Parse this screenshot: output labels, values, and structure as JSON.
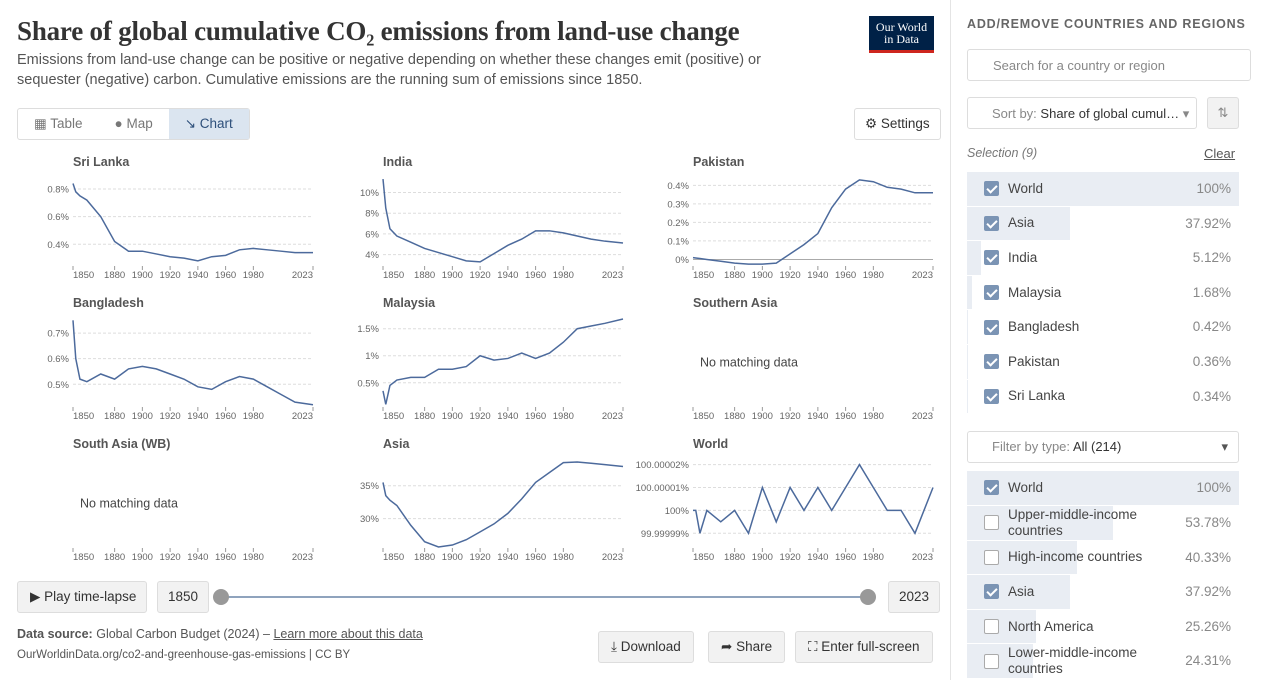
{
  "logo": {
    "line1": "Our World",
    "line2": "in Data"
  },
  "header": {
    "title": "Share of global cumulative CO₂ emissions from land-use change",
    "subtitle": "Emissions from land-use change can be positive or negative depending on whether these changes emit (positive) or sequester (negative) carbon. Cumulative emissions are the running sum of emissions since 1850."
  },
  "tabs": [
    "Table",
    "Map",
    "Chart"
  ],
  "settings": "Settings",
  "chart_data": [
    {
      "type": "line",
      "title": "Sri Lanka",
      "color": "#4c6a9c",
      "x": [
        1850,
        1852,
        1855,
        1860,
        1870,
        1880,
        1890,
        1900,
        1910,
        1920,
        1930,
        1940,
        1950,
        1960,
        1970,
        1980,
        1990,
        2000,
        2010,
        2023
      ],
      "values": [
        0.84,
        0.78,
        0.75,
        0.72,
        0.6,
        0.42,
        0.35,
        0.35,
        0.33,
        0.31,
        0.3,
        0.28,
        0.31,
        0.32,
        0.36,
        0.37,
        0.36,
        0.35,
        0.34,
        0.34
      ],
      "xlim": [
        1850,
        2023
      ],
      "xticks": [
        1850,
        1880,
        1900,
        1920,
        1940,
        1960,
        1980,
        2023
      ],
      "ylim": [
        0.25,
        0.88
      ],
      "yticks": [
        {
          "value": 0.4,
          "label": "0.4%"
        },
        {
          "value": 0.6,
          "label": "0.6%"
        },
        {
          "value": 0.8,
          "label": "0.8%"
        }
      ]
    },
    {
      "type": "line",
      "title": "India",
      "color": "#4c6a9c",
      "x": [
        1850,
        1852,
        1855,
        1860,
        1870,
        1880,
        1890,
        1900,
        1910,
        1920,
        1930,
        1940,
        1950,
        1960,
        1970,
        1980,
        1990,
        2000,
        2010,
        2023
      ],
      "values": [
        11.3,
        8.5,
        6.5,
        5.8,
        5.2,
        4.6,
        4.2,
        3.8,
        3.4,
        3.3,
        4.1,
        4.9,
        5.5,
        6.3,
        6.3,
        6.1,
        5.8,
        5.5,
        5.3,
        5.12
      ],
      "xlim": [
        1850,
        2023
      ],
      "xticks": [
        1850,
        1880,
        1900,
        1920,
        1940,
        1960,
        1980,
        2023
      ],
      "ylim": [
        3.0,
        11.4
      ],
      "yticks": [
        {
          "value": 4,
          "label": "4%"
        },
        {
          "value": 6,
          "label": "6%"
        },
        {
          "value": 8,
          "label": "8%"
        },
        {
          "value": 10,
          "label": "10%"
        }
      ]
    },
    {
      "type": "line",
      "title": "Pakistan",
      "color": "#4c6a9c",
      "x": [
        1850,
        1852,
        1855,
        1860,
        1870,
        1880,
        1890,
        1900,
        1910,
        1920,
        1930,
        1940,
        1950,
        1960,
        1970,
        1980,
        1990,
        2000,
        2010,
        2023
      ],
      "values": [
        0.01,
        0.008,
        0.005,
        0.0,
        -0.01,
        -0.02,
        -0.025,
        -0.025,
        -0.02,
        0.03,
        0.08,
        0.14,
        0.28,
        0.38,
        0.43,
        0.42,
        0.39,
        0.38,
        0.36,
        0.36
      ],
      "xlim": [
        1850,
        2023
      ],
      "xticks": [
        1850,
        1880,
        1900,
        1920,
        1940,
        1960,
        1980,
        2023
      ],
      "ylim": [
        -0.03,
        0.44
      ],
      "yticks": [
        {
          "value": 0,
          "label": "0%"
        },
        {
          "value": 0.1,
          "label": "0.1%"
        },
        {
          "value": 0.2,
          "label": "0.2%"
        },
        {
          "value": 0.3,
          "label": "0.3%"
        },
        {
          "value": 0.4,
          "label": "0.4%"
        }
      ]
    },
    {
      "type": "line",
      "title": "Bangladesh",
      "color": "#4c6a9c",
      "x": [
        1850,
        1852,
        1855,
        1860,
        1870,
        1880,
        1890,
        1900,
        1910,
        1920,
        1930,
        1940,
        1950,
        1960,
        1970,
        1980,
        1990,
        2000,
        2010,
        2023
      ],
      "values": [
        0.75,
        0.6,
        0.52,
        0.51,
        0.54,
        0.52,
        0.56,
        0.57,
        0.56,
        0.54,
        0.52,
        0.49,
        0.48,
        0.51,
        0.53,
        0.52,
        0.49,
        0.46,
        0.43,
        0.42
      ],
      "xlim": [
        1850,
        2023
      ],
      "xticks": [
        1850,
        1880,
        1900,
        1920,
        1940,
        1960,
        1980,
        2023
      ],
      "ylim": [
        0.415,
        0.755
      ],
      "yticks": [
        {
          "value": 0.5,
          "label": "0.5%"
        },
        {
          "value": 0.6,
          "label": "0.6%"
        },
        {
          "value": 0.7,
          "label": "0.7%"
        }
      ]
    },
    {
      "type": "line",
      "title": "Malaysia",
      "color": "#4c6a9c",
      "x": [
        1850,
        1852,
        1855,
        1860,
        1870,
        1880,
        1890,
        1900,
        1910,
        1920,
        1930,
        1940,
        1950,
        1960,
        1970,
        1980,
        1990,
        2000,
        2010,
        2023
      ],
      "values": [
        0.35,
        0.1,
        0.45,
        0.55,
        0.6,
        0.6,
        0.75,
        0.75,
        0.8,
        1.0,
        0.92,
        0.95,
        1.05,
        0.95,
        1.05,
        1.25,
        1.5,
        1.55,
        1.6,
        1.68
      ],
      "xlim": [
        1850,
        2023
      ],
      "xticks": [
        1850,
        1880,
        1900,
        1920,
        1940,
        1960,
        1980,
        2023
      ],
      "ylim": [
        0.07,
        1.68
      ],
      "yticks": [
        {
          "value": 0.5,
          "label": "0.5%"
        },
        {
          "value": 1,
          "label": "1%"
        },
        {
          "value": 1.5,
          "label": "1.5%"
        }
      ]
    },
    {
      "type": "line",
      "title": "Southern Asia",
      "annotation": "No matching data",
      "xlim": [
        1850,
        2023
      ],
      "xticks": [
        1850,
        1880,
        1900,
        1920,
        1940,
        1960,
        1980,
        2023
      ]
    },
    {
      "type": "line",
      "title": "South Asia (WB)",
      "annotation": "No matching data",
      "xlim": [
        1850,
        2023
      ],
      "xticks": [
        1850,
        1880,
        1900,
        1920,
        1940,
        1960,
        1980,
        2023
      ]
    },
    {
      "type": "line",
      "title": "Asia",
      "color": "#4c6a9c",
      "x": [
        1850,
        1852,
        1855,
        1860,
        1870,
        1880,
        1890,
        1900,
        1910,
        1920,
        1930,
        1940,
        1950,
        1960,
        1970,
        1980,
        1990,
        2000,
        2010,
        2023
      ],
      "values": [
        35.5,
        33.5,
        32.8,
        32,
        29,
        26.5,
        25.7,
        26,
        26.8,
        28,
        29.2,
        30.8,
        33,
        35.5,
        37,
        38.5,
        38.6,
        38.4,
        38.2,
        37.92
      ],
      "xlim": [
        1850,
        2023
      ],
      "xticks": [
        1850,
        1880,
        1900,
        1920,
        1940,
        1960,
        1980,
        2023
      ],
      "ylim": [
        25.7,
        38.9
      ],
      "yticks": [
        {
          "value": 30,
          "label": "30%"
        },
        {
          "value": 35,
          "label": "35%"
        }
      ]
    },
    {
      "type": "line",
      "title": "World",
      "color": "#4c6a9c",
      "x": [
        1850,
        1852,
        1855,
        1860,
        1870,
        1880,
        1890,
        1900,
        1910,
        1920,
        1930,
        1940,
        1950,
        1960,
        1970,
        1980,
        1990,
        2000,
        2010,
        2023
      ],
      "values": [
        100,
        100,
        99.99999,
        100,
        99.999995,
        100,
        99.99999,
        100.00001,
        99.999995,
        100.00001,
        100,
        100.00001,
        100,
        100.00001,
        100.00002,
        100.00001,
        100,
        100,
        99.99999,
        100.00001
      ],
      "xlim": [
        1850,
        2023
      ],
      "xticks": [
        1850,
        1880,
        1900,
        1920,
        1940,
        1960,
        1980,
        2023
      ],
      "ylim": [
        99.999984,
        100.000022
      ],
      "yticks": [
        {
          "value": 99.99999,
          "label": "99.99999%"
        },
        {
          "value": 100,
          "label": "100%"
        },
        {
          "value": 100.00001,
          "label": "100.00001%"
        },
        {
          "value": 100.00002,
          "label": "100.00002%"
        }
      ]
    }
  ],
  "timeline": {
    "play": "Play time-lapse",
    "start": 1850,
    "end": 2023
  },
  "footer": {
    "source_label": "Data source:",
    "source": "Global Carbon Budget (2024)",
    "separator": "–",
    "link": "Learn more about this data",
    "url": "OurWorldinData.org/co2-and-greenhouse-gas-emissions | CC BY"
  },
  "actions": [
    "Download",
    "Share",
    "Enter full-screen"
  ],
  "sidebar": {
    "heading": "ADD/REMOVE COUNTRIES AND REGIONS",
    "search_placeholder": "Search for a country or region",
    "sort_label": "Sort by:",
    "sort_value": "Share of global cumul…",
    "selection_label": "Selection (9)",
    "clear": "Clear",
    "selected": [
      {
        "name": "World",
        "value": 100,
        "value_label": "100%",
        "checked": true
      },
      {
        "name": "Asia",
        "value": 37.92,
        "value_label": "37.92%",
        "checked": true
      },
      {
        "name": "India",
        "value": 5.12,
        "value_label": "5.12%",
        "checked": true
      },
      {
        "name": "Malaysia",
        "value": 1.68,
        "value_label": "1.68%",
        "checked": true
      },
      {
        "name": "Bangladesh",
        "value": 0.42,
        "value_label": "0.42%",
        "checked": true
      },
      {
        "name": "Pakistan",
        "value": 0.36,
        "value_label": "0.36%",
        "checked": true
      },
      {
        "name": "Sri Lanka",
        "value": 0.34,
        "value_label": "0.34%",
        "checked": true
      }
    ],
    "filter_label": "Filter by type:",
    "filter_value": "All (214)",
    "entities": [
      {
        "name": "World",
        "value": 100,
        "value_label": "100%",
        "checked": true
      },
      {
        "name": "Upper-middle-income countries",
        "value": 53.78,
        "value_label": "53.78%",
        "checked": false
      },
      {
        "name": "High-income countries",
        "value": 40.33,
        "value_label": "40.33%",
        "checked": false
      },
      {
        "name": "Asia",
        "value": 37.92,
        "value_label": "37.92%",
        "checked": true
      },
      {
        "name": "North America",
        "value": 25.26,
        "value_label": "25.26%",
        "checked": false
      },
      {
        "name": "Lower-middle-income countries",
        "value": 24.31,
        "value_label": "24.31%",
        "checked": false
      }
    ]
  }
}
